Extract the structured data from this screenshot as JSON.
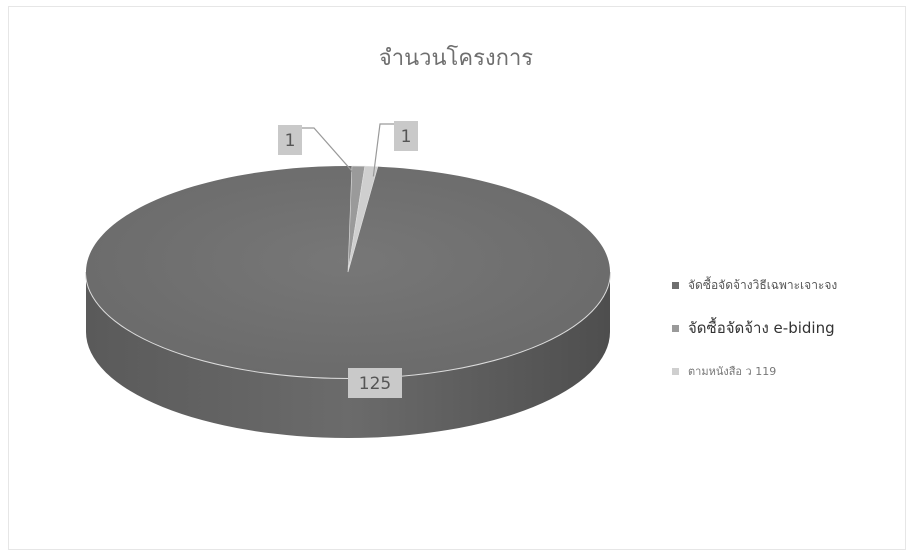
{
  "chart_data": {
    "type": "pie",
    "title": "จำนวนโครงการ",
    "categories": [
      "จัดซื้อจัดจ้างวิธีเฉพาะเจาะจง",
      "จัดซื้อจัดจ้าง e-biding",
      "ตามหนังสือ ว 119"
    ],
    "values": [
      125,
      1,
      1
    ],
    "data_labels": [
      "125",
      "1",
      "1"
    ],
    "style": "3d",
    "legend": "right",
    "colors": [
      "#6e6e6e",
      "#9a9a9a",
      "#cfcfcf"
    ]
  }
}
